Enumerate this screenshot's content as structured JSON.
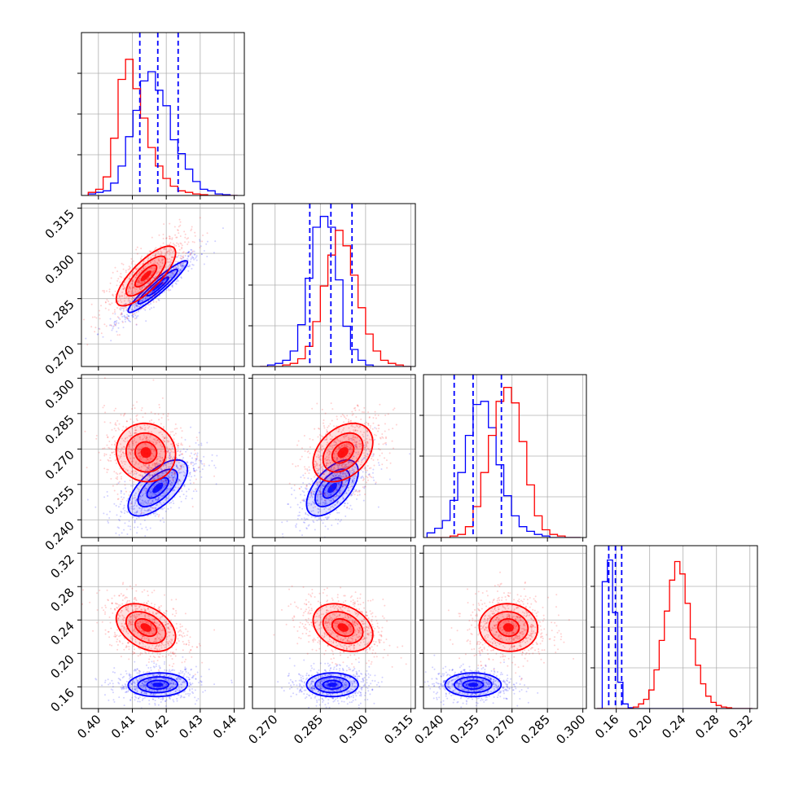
{
  "chart_data": {
    "type": "corner",
    "grid": true,
    "colors": {
      "series_a": "#0000ff",
      "series_b": "#ff0000"
    },
    "series": [
      {
        "color": "#0000ff",
        "means": [
          0.4175,
          0.289,
          0.2535,
          0.1625
        ]
      },
      {
        "color": "#ff0000",
        "means": [
          0.414,
          0.2925,
          0.2685,
          0.231
        ]
      }
    ],
    "quantiles": [
      [
        0.4122,
        0.4175,
        0.4235
      ],
      [
        0.2815,
        0.2885,
        0.2955
      ],
      [
        0.2455,
        0.2535,
        0.2655
      ],
      [
        0.151,
        0.159,
        0.1665
      ]
    ],
    "params": [
      {
        "range": [
          0.395,
          0.443
        ],
        "ticks": [
          "0.40",
          "0.41",
          "0.42",
          "0.43",
          "0.44"
        ]
      },
      {
        "range": [
          0.2625,
          0.3165
        ],
        "ticks": [
          "0.270",
          "0.285",
          "0.300",
          "0.315"
        ]
      },
      {
        "range": [
          0.2325,
          0.3015
        ],
        "ticks": [
          "0.240",
          "0.255",
          "0.270",
          "0.285",
          "0.300"
        ]
      },
      {
        "range": [
          0.134,
          0.329
        ],
        "ticks": [
          "0.16",
          "0.20",
          "0.24",
          "0.28",
          "0.32"
        ]
      }
    ],
    "histograms": [
      {
        "edges_range": [
          0.397,
          0.441
        ],
        "blue": [
          0.01,
          0.02,
          0.03,
          0.08,
          0.19,
          0.38,
          0.55,
          0.74,
          0.8,
          0.68,
          0.58,
          0.36,
          0.27,
          0.17,
          0.09,
          0.04,
          0.03,
          0.01,
          0.005,
          0.0
        ],
        "red": [
          0.02,
          0.04,
          0.12,
          0.37,
          0.75,
          0.88,
          0.69,
          0.5,
          0.31,
          0.19,
          0.11,
          0.06,
          0.03,
          0.02,
          0.01,
          0.005,
          0.0,
          0.0,
          0.0,
          0.0
        ]
      },
      {
        "edges_range": [
          0.265,
          0.315
        ],
        "blue": [
          0.0,
          0.01,
          0.02,
          0.04,
          0.1,
          0.27,
          0.57,
          0.9,
          0.97,
          0.9,
          0.56,
          0.26,
          0.11,
          0.04,
          0.01,
          0.0,
          0.0,
          0.0,
          0.0,
          0.0
        ],
        "red": [
          0.0,
          0.0,
          0.0,
          0.01,
          0.02,
          0.05,
          0.13,
          0.29,
          0.52,
          0.72,
          0.88,
          0.78,
          0.59,
          0.38,
          0.21,
          0.1,
          0.04,
          0.02,
          0.01,
          0.0
        ]
      },
      {
        "edges_range": [
          0.234,
          0.299
        ],
        "blue": [
          0.03,
          0.06,
          0.11,
          0.24,
          0.42,
          0.66,
          0.86,
          0.88,
          0.71,
          0.47,
          0.27,
          0.14,
          0.07,
          0.04,
          0.02,
          0.01,
          0.0,
          0.0,
          0.0,
          0.0
        ],
        "red": [
          0.0,
          0.0,
          0.0,
          0.01,
          0.02,
          0.07,
          0.2,
          0.42,
          0.66,
          0.88,
          0.97,
          0.87,
          0.62,
          0.34,
          0.14,
          0.05,
          0.02,
          0.01,
          0.0,
          0.0
        ]
      },
      {
        "edges_range": [
          0.137,
          0.323
        ],
        "blue": [
          0.0,
          0.82,
          0.96,
          0.62,
          0.17,
          0.03,
          0.005,
          0.0,
          0.0,
          0.0,
          0.0,
          0.0,
          0.0,
          0.0,
          0.0,
          0.0,
          0.0,
          0.0,
          0.0,
          0.0,
          0.0,
          0.0,
          0.0,
          0.0,
          0.0,
          0.0,
          0.0,
          0.0,
          0.0,
          0.0
        ],
        "red": [
          0.0,
          0.0,
          0.0,
          0.0,
          0.0,
          0.0,
          0.0,
          0.01,
          0.03,
          0.06,
          0.12,
          0.25,
          0.44,
          0.63,
          0.83,
          0.95,
          0.87,
          0.68,
          0.45,
          0.28,
          0.16,
          0.08,
          0.04,
          0.02,
          0.01,
          0.005,
          0.0,
          0.0,
          0.0,
          0.0
        ]
      }
    ],
    "covariances": {
      "blue": {
        "sd": [
          0.0053,
          0.0052,
          0.0072,
          0.0086
        ],
        "corr": [
          [
            1,
            0.94,
            0.65,
            0.05
          ],
          [
            0.94,
            1,
            0.58,
            0.0
          ],
          [
            0.65,
            0.58,
            1,
            0.0
          ],
          [
            0.05,
            0.0,
            0.0,
            1
          ]
        ]
      },
      "red": {
        "sd": [
          0.0053,
          0.006,
          0.0075,
          0.0173
        ],
        "corr": [
          [
            1,
            0.78,
            -0.05,
            -0.38
          ],
          [
            0.78,
            1,
            0.35,
            -0.3
          ],
          [
            -0.05,
            0.35,
            1,
            -0.05
          ],
          [
            -0.38,
            -0.3,
            -0.05,
            1
          ]
        ]
      }
    },
    "contour_levels_sigma": [
      0.6,
      1.1,
      1.65
    ]
  }
}
